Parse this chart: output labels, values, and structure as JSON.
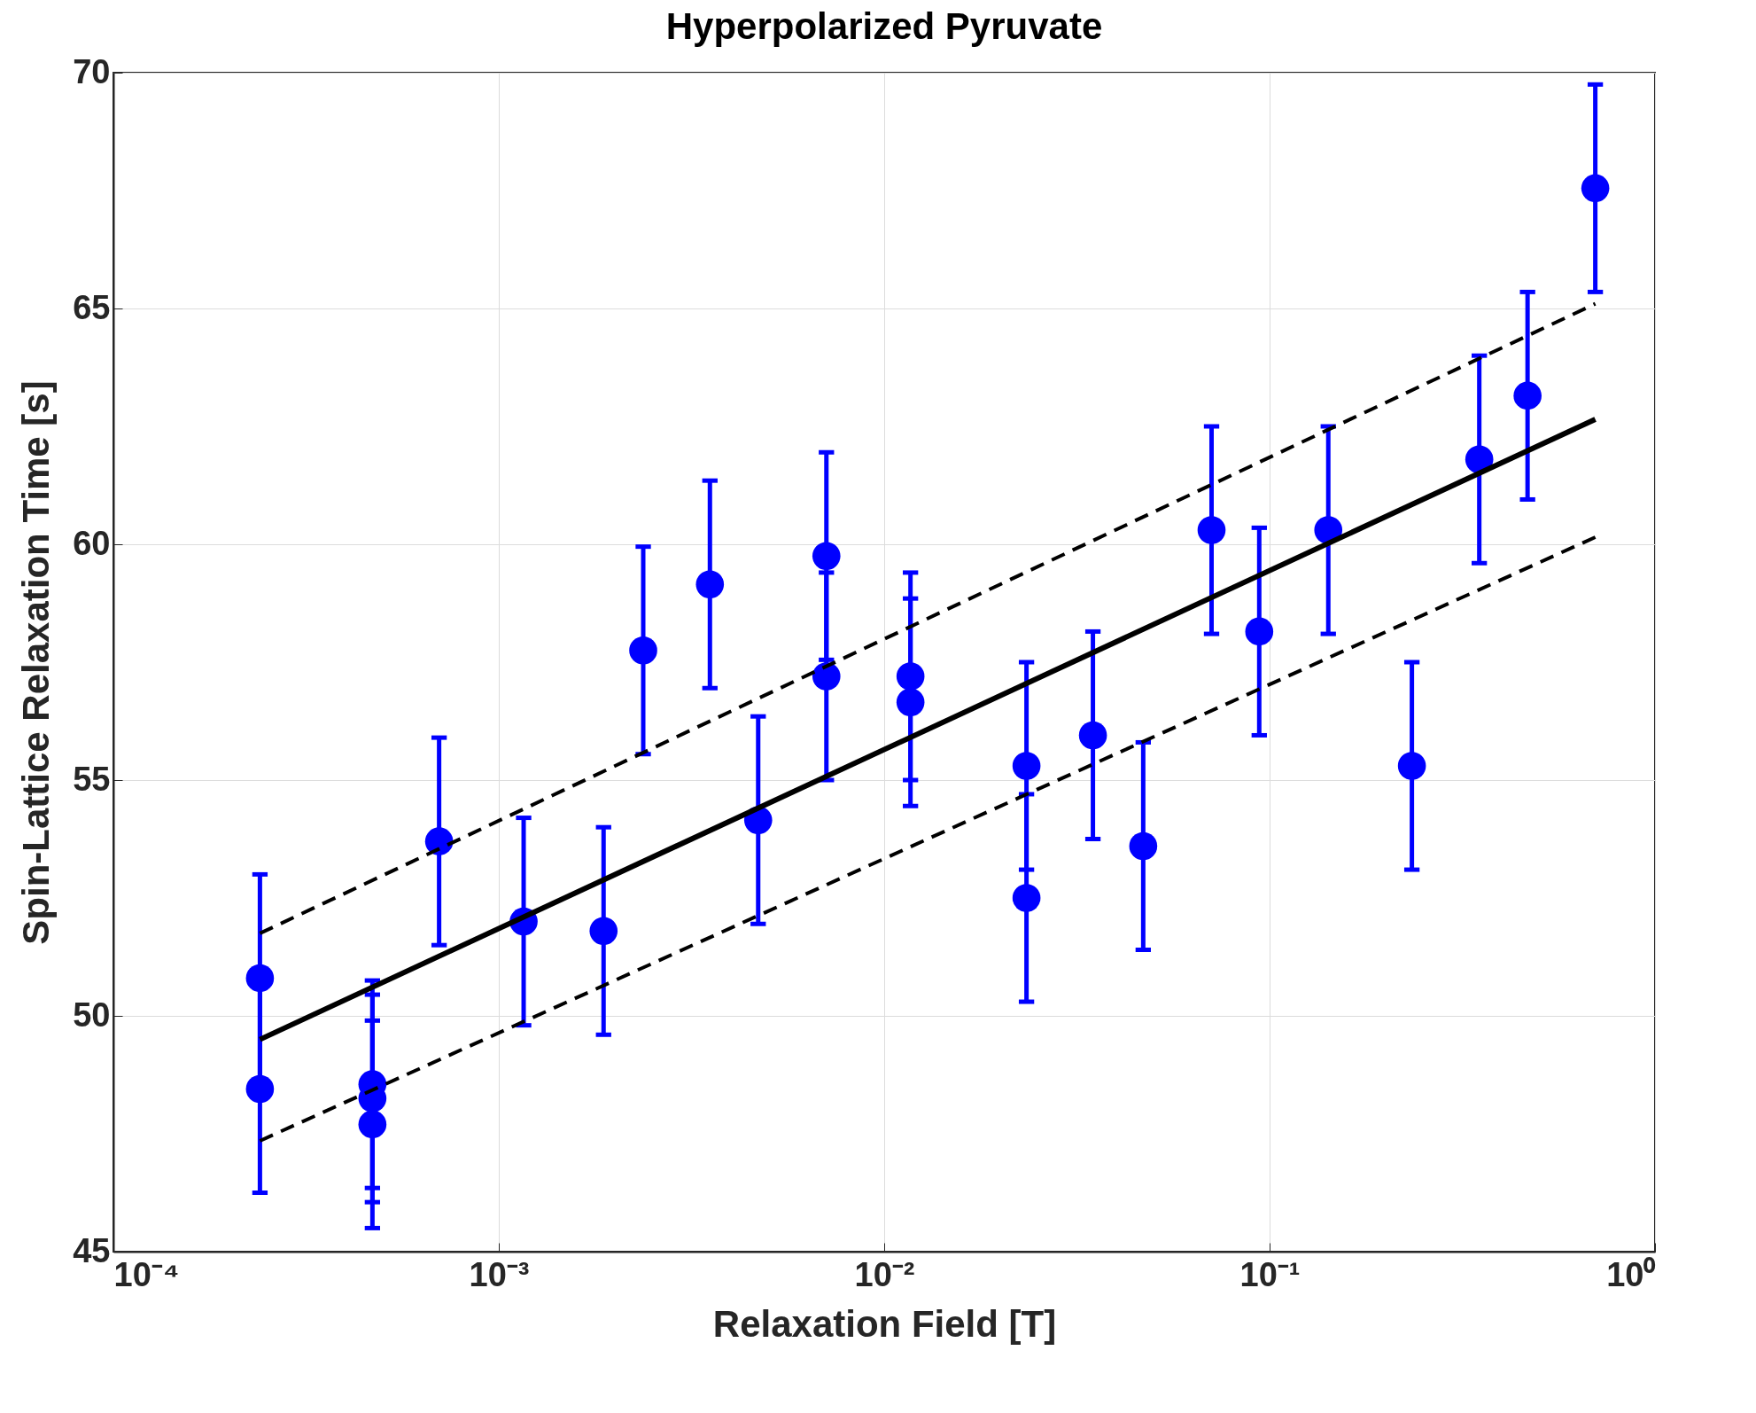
{
  "chart_data": {
    "type": "scatter",
    "title": "Hyperpolarized Pyruvate",
    "xlabel": "Relaxation Field [T]",
    "ylabel": "Spin-Lattice Relaxation Time [s]",
    "log": "x",
    "grid": true,
    "xlim": [
      0.0001,
      1
    ],
    "xticks": [
      {
        "value": 0.0001,
        "label": "10⁻⁴"
      },
      {
        "value": 0.001,
        "label": "10⁻³"
      },
      {
        "value": 0.01,
        "label": "10⁻²"
      },
      {
        "value": 0.1,
        "label": "10⁻¹"
      },
      {
        "value": 1,
        "label": "10⁰"
      }
    ],
    "ylim": [
      45,
      70
    ],
    "yticks": [
      45,
      50,
      55,
      60,
      65,
      70
    ],
    "series": [
      {
        "color": "#0000ff",
        "marker": "circle",
        "x": [
          0.00024,
          0.00024,
          0.00047,
          0.00047,
          0.00047,
          0.0007,
          0.00116,
          0.00187,
          0.00237,
          0.00353,
          0.00471,
          0.00708,
          0.00708,
          0.0117,
          0.0117,
          0.0234,
          0.0234,
          0.0348,
          0.047,
          0.0707,
          0.094,
          0.142,
          0.234,
          0.35,
          0.467,
          0.7
        ],
        "values": [
          50.8,
          48.45,
          48.55,
          48.25,
          47.7,
          53.7,
          52.0,
          51.8,
          57.75,
          59.15,
          54.15,
          59.75,
          57.2,
          57.2,
          56.65,
          55.3,
          52.5,
          55.95,
          53.6,
          60.3,
          58.15,
          60.3,
          55.3,
          61.8,
          63.15,
          67.55
        ],
        "errors": [
          2.2,
          2.2,
          2.2,
          2.2,
          2.2,
          2.2,
          2.2,
          2.2,
          2.2,
          2.2,
          2.2,
          2.2,
          2.2,
          2.2,
          2.2,
          2.2,
          2.2,
          2.2,
          2.2,
          2.2,
          2.2,
          2.2,
          2.2,
          2.2,
          2.2,
          2.2
        ]
      },
      {
        "type": "line",
        "color": "#000000",
        "line_style": "solid",
        "x": [
          0.00024,
          0.7
        ],
        "values": [
          49.5,
          62.65
        ]
      },
      {
        "type": "line",
        "color": "#000000",
        "line_style": "dashed",
        "x": [
          0.00024,
          0.7
        ],
        "values": [
          51.75,
          65.1
        ]
      },
      {
        "type": "line",
        "color": "#000000",
        "line_style": "dashed",
        "x": [
          0.00024,
          0.7
        ],
        "values": [
          47.35,
          60.15
        ]
      }
    ]
  }
}
